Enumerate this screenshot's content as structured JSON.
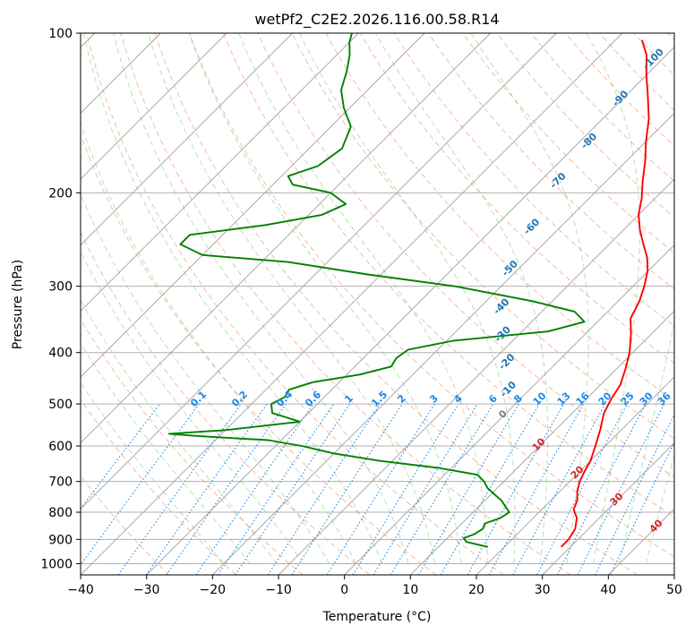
{
  "chart_data": {
    "type": "line",
    "title": "wetPf2_C2E2.2026.116.00.58.R14",
    "xlabel": "Temperature (°C)",
    "ylabel": "Pressure (hPa)",
    "xlim": [
      -40,
      50
    ],
    "ylim": [
      1050,
      100
    ],
    "y_scale": "log",
    "skew": "skew-T log-p",
    "x_ticks": [
      "−40",
      "−30",
      "−20",
      "−10",
      "0",
      "10",
      "20",
      "30",
      "40",
      "50"
    ],
    "y_ticks": [
      "100",
      "200",
      "300",
      "400",
      "500",
      "600",
      "700",
      "800",
      "900",
      "1000"
    ],
    "grid": true,
    "colors": {
      "temperature": "#ff0000",
      "dewpoint": "#008000",
      "dry_adiabat_labels": "#1f77b4",
      "mixing_ratio": "#1e88e5",
      "moist_adiabat_labels": "#d62728",
      "zero_isotherm_label": "#808080"
    },
    "series": [
      {
        "key": "temperature",
        "values": [
          [
            930,
            28.6
          ],
          [
            900,
            28.6
          ],
          [
            860,
            28.0
          ],
          [
            820,
            26.6
          ],
          [
            790,
            24.8
          ],
          [
            760,
            24.0
          ],
          [
            730,
            22.6
          ],
          [
            700,
            21.5
          ],
          [
            670,
            20.7
          ],
          [
            640,
            20.0
          ],
          [
            600,
            18.5
          ],
          [
            560,
            16.8
          ],
          [
            520,
            14.8
          ],
          [
            490,
            13.8
          ],
          [
            460,
            13.0
          ],
          [
            430,
            11.4
          ],
          [
            400,
            9.5
          ],
          [
            370,
            7.0
          ],
          [
            345,
            4.5
          ],
          [
            320,
            3.2
          ],
          [
            300,
            1.7
          ],
          [
            280,
            -0.2
          ],
          [
            265,
            -2.2
          ],
          [
            250,
            -4.8
          ],
          [
            235,
            -7.5
          ],
          [
            220,
            -10.0
          ],
          [
            205,
            -12.0
          ],
          [
            190,
            -14.5
          ],
          [
            175,
            -17.0
          ],
          [
            160,
            -20.0
          ],
          [
            145,
            -23.0
          ],
          [
            130,
            -27.0
          ],
          [
            120,
            -30.0
          ],
          [
            110,
            -33.0
          ],
          [
            103,
            -36.0
          ]
        ]
      },
      {
        "key": "dewpoint",
        "values": [
          [
            930,
            17.5
          ],
          [
            910,
            13.5
          ],
          [
            895,
            12.5
          ],
          [
            880,
            13.5
          ],
          [
            860,
            14.0
          ],
          [
            840,
            13.5
          ],
          [
            820,
            15.0
          ],
          [
            800,
            15.5
          ],
          [
            780,
            14.0
          ],
          [
            760,
            12.5
          ],
          [
            740,
            10.5
          ],
          [
            720,
            8.5
          ],
          [
            700,
            7.0
          ],
          [
            680,
            5.0
          ],
          [
            660,
            -2.0
          ],
          [
            640,
            -12.0
          ],
          [
            620,
            -20.0
          ],
          [
            600,
            -26.0
          ],
          [
            585,
            -32.0
          ],
          [
            575,
            -43.0
          ],
          [
            569,
            -48.0
          ],
          [
            560,
            -40.0
          ],
          [
            540,
            -30.0
          ],
          [
            520,
            -35.5
          ],
          [
            500,
            -37.0
          ],
          [
            485,
            -36.0
          ],
          [
            470,
            -36.5
          ],
          [
            455,
            -34.0
          ],
          [
            440,
            -28.0
          ],
          [
            425,
            -24.5
          ],
          [
            410,
            -25.0
          ],
          [
            395,
            -24.5
          ],
          [
            380,
            -19.0
          ],
          [
            365,
            -6.0
          ],
          [
            350,
            -2.0
          ],
          [
            335,
            -5.0
          ],
          [
            320,
            -13.0
          ],
          [
            300,
            -27.0
          ],
          [
            285,
            -42.0
          ],
          [
            270,
            -56.0
          ],
          [
            262,
            -70.0
          ],
          [
            250,
            -75.0
          ],
          [
            240,
            -75.0
          ],
          [
            230,
            -65.0
          ],
          [
            220,
            -58.0
          ],
          [
            210,
            -56.0
          ],
          [
            200,
            -60.0
          ],
          [
            193,
            -67.0
          ],
          [
            186,
            -69.0
          ],
          [
            178,
            -66.0
          ],
          [
            165,
            -65.0
          ],
          [
            150,
            -67.0
          ],
          [
            138,
            -71.0
          ],
          [
            128,
            -74.0
          ],
          [
            118,
            -76.0
          ],
          [
            110,
            -78.0
          ],
          [
            104,
            -80.0
          ],
          [
            100,
            -81.0
          ]
        ]
      }
    ],
    "annotations": {
      "dry_adiabats_C": [
        "-100",
        "-90",
        "-80",
        "-70",
        "-60",
        "-50",
        "-40",
        "-30",
        "-20",
        "-10"
      ],
      "mixing_ratio_gkg": [
        "0.1",
        "0.2",
        "0.4",
        "0.6",
        "1",
        "1.5",
        "2",
        "3",
        "4",
        "6",
        "8",
        "10",
        "13",
        "16",
        "20",
        "25",
        "30",
        "36"
      ],
      "moist_adiabats_C": [
        "10",
        "20",
        "30",
        "40"
      ],
      "zero_isotherm": "0"
    }
  }
}
